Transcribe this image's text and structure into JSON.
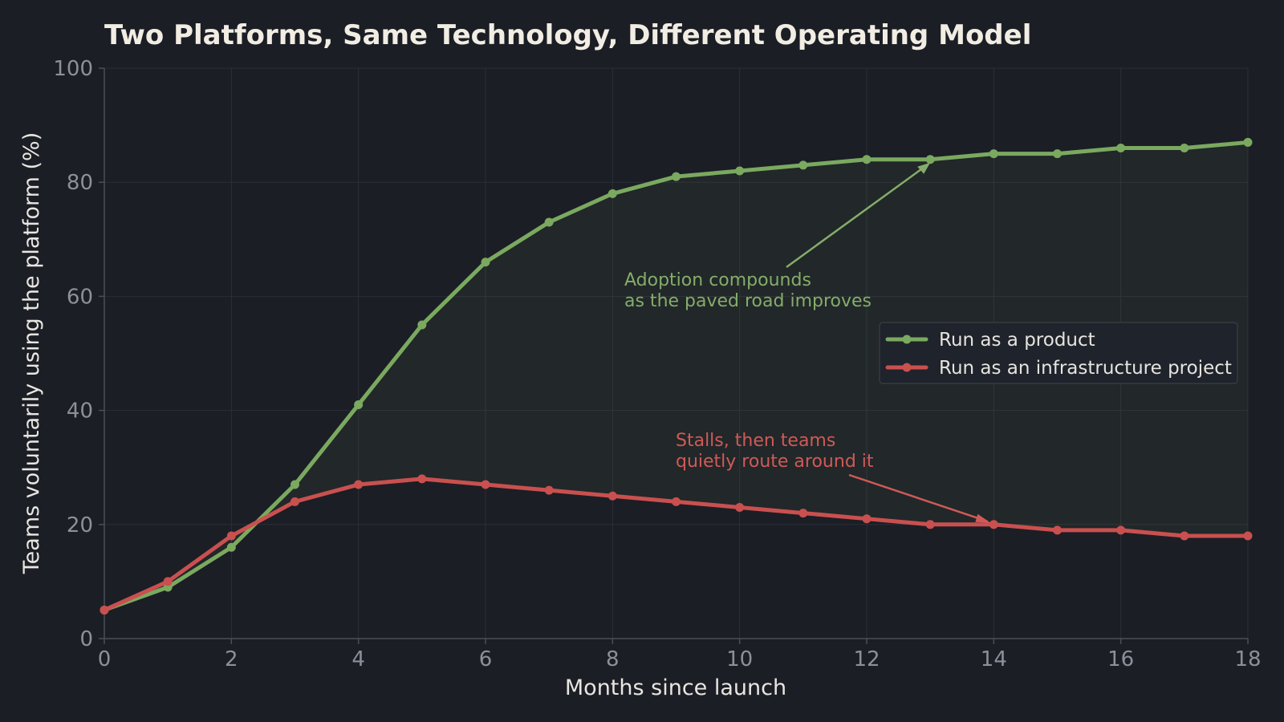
{
  "chart_data": {
    "type": "line",
    "title": "Two Platforms, Same Technology, Different Operating Model",
    "xlabel": "Months since launch",
    "ylabel": "Teams voluntarily using the platform (%)",
    "xlim": [
      0,
      18
    ],
    "ylim": [
      0,
      100
    ],
    "x_ticks": [
      "0",
      "2",
      "4",
      "6",
      "8",
      "10",
      "12",
      "14",
      "16",
      "18"
    ],
    "y_ticks": [
      "0",
      "20",
      "40",
      "60",
      "80",
      "100"
    ],
    "grid": true,
    "legend_position": "right",
    "x": [
      0,
      1,
      2,
      3,
      4,
      5,
      6,
      7,
      8,
      9,
      10,
      11,
      12,
      13,
      14,
      15,
      16,
      17,
      18
    ],
    "series": [
      {
        "name": "Run as a product",
        "color": "#7aa95f",
        "values": [
          5,
          9,
          16,
          27,
          41,
          55,
          66,
          73,
          78,
          81,
          82,
          83,
          84,
          84,
          85,
          85,
          86,
          86,
          87
        ]
      },
      {
        "name": "Run as an infrastructure project",
        "color": "#c9504f",
        "values": [
          5,
          10,
          18,
          24,
          27,
          28,
          27,
          26,
          25,
          24,
          23,
          22,
          21,
          20,
          20,
          19,
          19,
          18,
          18
        ]
      }
    ],
    "fill_between": {
      "color": "#7aa95f",
      "opacity": 0.07
    },
    "annotations": [
      {
        "lines": [
          "Adoption compounds",
          "as the paved road improves"
        ],
        "color": "#84ad6a",
        "points_to": {
          "x": 13,
          "y": 84
        }
      },
      {
        "lines": [
          "Stalls, then teams",
          "quietly route around it"
        ],
        "color": "#cf5a57",
        "points_to": {
          "x": 14,
          "y": 20
        }
      }
    ]
  }
}
